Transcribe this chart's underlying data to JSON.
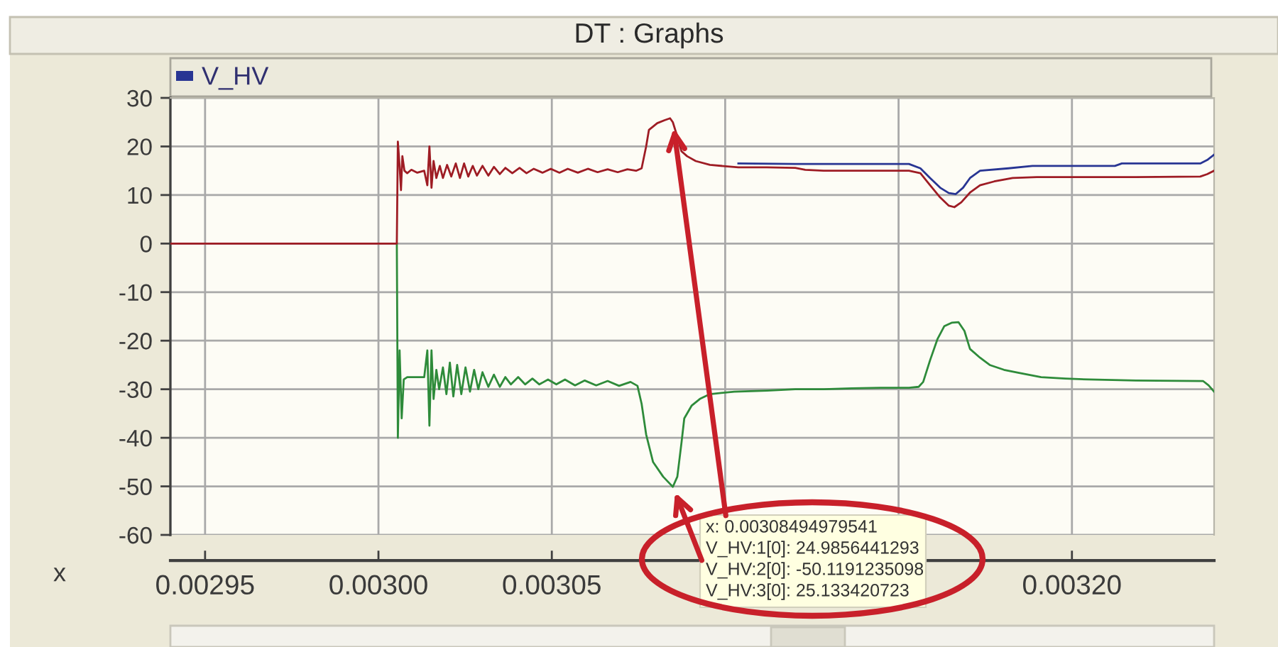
{
  "chart_data": {
    "type": "line",
    "title": "DT : Graphs",
    "xlabel": "x",
    "legend_title": "V_HV",
    "annotations": [
      {
        "text": "x: 0.00308494979541",
        "x": 0.00308494979541,
        "y": 24.9856441293
      },
      "V_HV:1[0]: 24.9856441293",
      {
        "text": "V_HV:2[0]: -50.1191235098",
        "x": 0.00308494979541,
        "y": -50.1191235098
      },
      "V_HV:3[0]: 25.133420723"
    ],
    "series": [
      {
        "color": "#2e8b3a",
        "x": [
          0.0030053,
          0.0030056,
          0.0030061,
          0.0030067,
          0.0030073,
          0.0030083,
          0.0030132,
          0.0030141,
          0.0030147,
          0.0030153,
          0.0030159,
          0.0030167,
          0.0030175,
          0.0030186,
          0.0030196,
          0.0030206,
          0.0030216,
          0.0030227,
          0.0030239,
          0.0030251,
          0.0030264,
          0.0030276,
          0.0030288,
          0.00303,
          0.0030317,
          0.0030333,
          0.003035,
          0.0030366,
          0.0030382,
          0.0030403,
          0.0030423,
          0.0030444,
          0.0030464,
          0.0030489,
          0.0030513,
          0.0030538,
          0.0030567,
          0.0030595,
          0.0030628,
          0.0030661,
          0.0030694,
          0.0030727,
          0.0030747,
          0.0030759,
          0.0030772,
          0.0030792,
          0.0030821,
          0.0030841,
          0.0030849,
          0.0030862,
          0.0030874,
          0.0030882,
          0.0030903,
          0.0030927,
          0.0030956,
          0.0031026,
          0.003112,
          0.0031202,
          0.0031284,
          0.0031366,
          0.0031448,
          0.003153,
          0.0031558,
          0.0031571,
          0.0031591,
          0.0031612,
          0.0031632,
          0.0031653,
          0.0031673,
          0.003169,
          0.0031706,
          0.0031735,
          0.0031763,
          0.0031804,
          0.0031845,
          0.0031911,
          0.0031981,
          0.003205,
          0.0032185,
          0.0032378,
          0.0032394,
          0.003241
        ],
        "values": [
          0,
          -40,
          -22,
          -36,
          -28,
          -27.5,
          -27.5,
          -22,
          -37.5,
          -22,
          -32,
          -26,
          -30,
          -25.5,
          -31,
          -24.5,
          -31.5,
          -25,
          -31,
          -25.5,
          -30.5,
          -26,
          -30,
          -26.5,
          -29.5,
          -27,
          -29.5,
          -27.5,
          -29,
          -27.5,
          -29,
          -27.8,
          -29,
          -28,
          -29,
          -28,
          -29.2,
          -28.2,
          -29.2,
          -28.3,
          -29.3,
          -28.5,
          -29.3,
          -33,
          -39.3,
          -45,
          -48,
          -49.5,
          -50.1,
          -48,
          -41,
          -36,
          -33.4,
          -32,
          -31,
          -30.5,
          -30.3,
          -30,
          -30,
          -29.8,
          -29.7,
          -29.7,
          -29.5,
          -28.5,
          -24,
          -19.7,
          -17,
          -16.3,
          -16.2,
          -18,
          -21.7,
          -23.5,
          -25,
          -26,
          -26.6,
          -27.5,
          -27.8,
          -28,
          -28.2,
          -28.3,
          -29.2,
          -30.5
        ]
      },
      {
        "color": "#283593",
        "x": [
          0.0031038,
          0.0031202,
          0.0031366,
          0.003153,
          0.0031563,
          0.0031591,
          0.003162,
          0.0031645,
          0.0031665,
          0.0031686,
          0.0031706,
          0.0031735,
          0.0031817,
          0.0031886,
          0.0032124,
          0.0032144,
          0.003237,
          0.003239,
          0.003241
        ],
        "values": [
          16.5,
          16.4,
          16.4,
          16.4,
          15.5,
          13.5,
          11.5,
          10.4,
          10.2,
          11.5,
          13.5,
          15,
          15.5,
          16,
          16,
          16.5,
          16.5,
          17.2,
          18.3
        ]
      },
      {
        "color": "#9e1c24",
        "x": [
          0.00294,
          0.0030053,
          0.0030056,
          0.0030061,
          0.0030065,
          0.0030069,
          0.0030075,
          0.0030083,
          0.0030095,
          0.0030112,
          0.0030132,
          0.0030141,
          0.0030147,
          0.0030153,
          0.0030159,
          0.0030167,
          0.0030177,
          0.0030186,
          0.0030198,
          0.003021,
          0.0030223,
          0.0030235,
          0.0030247,
          0.0030259,
          0.0030272,
          0.0030284,
          0.00303,
          0.0030317,
          0.0030333,
          0.003035,
          0.0030366,
          0.0030386,
          0.0030407,
          0.0030427,
          0.0030448,
          0.0030473,
          0.0030497,
          0.0030522,
          0.0030546,
          0.0030575,
          0.0030604,
          0.0030632,
          0.0030661,
          0.003069,
          0.0030718,
          0.0030743,
          0.0030759,
          0.0030772,
          0.003078,
          0.0030804,
          0.0030825,
          0.0030841,
          0.0030849,
          0.0030862,
          0.0030874,
          0.003089,
          0.0030915,
          0.0030956,
          0.0031038,
          0.003112,
          0.0031202,
          0.0031231,
          0.0031284,
          0.0031366,
          0.003153,
          0.0031563,
          0.0031591,
          0.003162,
          0.0031645,
          0.0031661,
          0.0031681,
          0.0031706,
          0.0031735,
          0.0031776,
          0.0031829,
          0.0031899,
          0.0032185,
          0.003237,
          0.003239,
          0.003241
        ],
        "values": [
          0,
          0,
          21,
          16,
          11,
          18,
          15,
          14.5,
          15.2,
          14.6,
          15,
          12,
          20,
          11.5,
          17,
          13.5,
          16,
          13.5,
          16.2,
          13.8,
          16.5,
          13.5,
          16.5,
          13.8,
          16,
          14,
          16,
          14,
          15.8,
          14.3,
          15.6,
          14.5,
          15.6,
          14.5,
          15.4,
          14.6,
          15.4,
          14.6,
          15.4,
          14.6,
          15.4,
          14.7,
          15.3,
          14.7,
          15.3,
          15,
          15.5,
          20,
          23.4,
          24.8,
          25.4,
          25.8,
          25,
          22,
          19,
          18,
          17,
          16.2,
          15.7,
          15.7,
          15.6,
          15.2,
          15,
          15,
          15,
          14.5,
          12,
          9.5,
          7.8,
          7.5,
          8.5,
          10.5,
          12,
          12.8,
          13.5,
          13.7,
          13.7,
          13.8,
          14.3,
          15
        ]
      }
    ],
    "xlim": [
      0.00294,
      0.003241
    ],
    "ylim": [
      -60,
      30
    ],
    "xticks": [
      0.00295,
      {
        "value": 0.003,
        "label": "0.00300"
      },
      0.00305,
      {
        "value": 0.0031,
        "label": null
      },
      {
        "value": 0.00315,
        "label": null
      },
      {
        "value": 0.0032,
        "label": "0.00320"
      }
    ],
    "yticks": [
      -60,
      -50,
      -40,
      -30,
      -20,
      -10,
      0,
      10,
      20,
      30
    ],
    "grid": true
  }
}
